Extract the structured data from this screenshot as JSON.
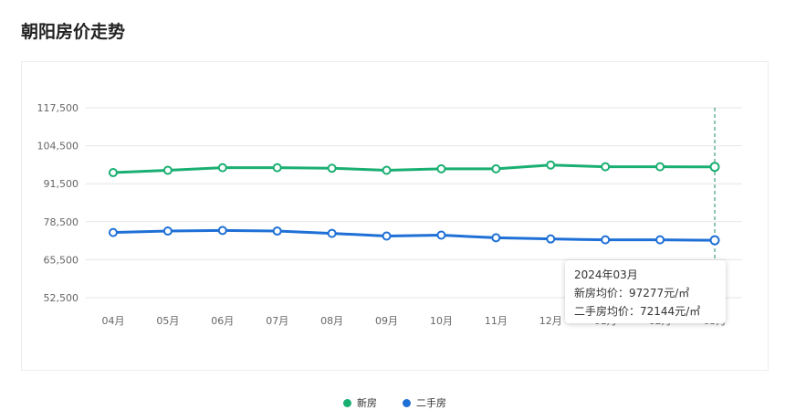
{
  "page_title": "朝阳房价走势",
  "colors": {
    "new": "#1aaf72",
    "second": "#1f70d6",
    "grid": "#e6e6e6",
    "cursor": "#1a8a5a"
  },
  "tooltip": {
    "month": "2024年03月",
    "new_label": "新房均价：",
    "new_value": "97277元/㎡",
    "second_label": "二手房均价：",
    "second_value": "72144元/㎡"
  },
  "chart_data": {
    "type": "line",
    "categories": [
      "04月",
      "05月",
      "06月",
      "07月",
      "08月",
      "09月",
      "10月",
      "11月",
      "12月",
      "01月",
      "02月",
      "03月"
    ],
    "series": [
      {
        "name": "新房",
        "values": [
          95300,
          96100,
          97000,
          97000,
          96800,
          96100,
          96600,
          96600,
          97900,
          97300,
          97300,
          97277
        ]
      },
      {
        "name": "二手房",
        "values": [
          74800,
          75300,
          75500,
          75300,
          74500,
          73600,
          73900,
          73000,
          72600,
          72300,
          72300,
          72144
        ]
      }
    ],
    "y_ticks": [
      "117,500",
      "104,500",
      "91,500",
      "78,500",
      "65,500",
      "52,500"
    ],
    "ylim": [
      52500,
      117500
    ],
    "grid": true,
    "legend": "bottom",
    "highlight_index": 11
  }
}
